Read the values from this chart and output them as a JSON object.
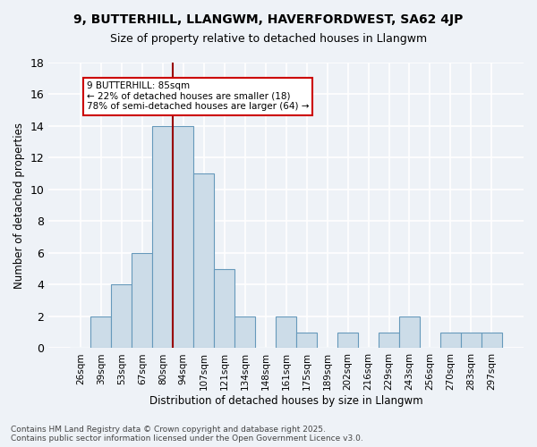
{
  "title1": "9, BUTTERHILL, LLANGWM, HAVERFORDWEST, SA62 4JP",
  "title2": "Size of property relative to detached houses in Llangwm",
  "xlabel": "Distribution of detached houses by size in Llangwm",
  "ylabel": "Number of detached properties",
  "categories": [
    "26sqm",
    "39sqm",
    "53sqm",
    "67sqm",
    "80sqm",
    "94sqm",
    "107sqm",
    "121sqm",
    "134sqm",
    "148sqm",
    "161sqm",
    "175sqm",
    "189sqm",
    "202sqm",
    "216sqm",
    "229sqm",
    "243sqm",
    "256sqm",
    "270sqm",
    "283sqm",
    "297sqm"
  ],
  "values": [
    0,
    2,
    4,
    6,
    14,
    14,
    11,
    5,
    2,
    0,
    2,
    1,
    0,
    1,
    0,
    1,
    2,
    0,
    1,
    1,
    1
  ],
  "bar_color": "#ccdce8",
  "bar_edge_color": "#6699bb",
  "vline_x_index": 4,
  "vline_color": "#990000",
  "annotation_text": "9 BUTTERHILL: 85sqm\n← 22% of detached houses are smaller (18)\n78% of semi-detached houses are larger (64) →",
  "annotation_box_color": "#ffffff",
  "annotation_box_edge": "#cc0000",
  "ylim": [
    0,
    18
  ],
  "yticks": [
    0,
    2,
    4,
    6,
    8,
    10,
    12,
    14,
    16,
    18
  ],
  "footer": "Contains HM Land Registry data © Crown copyright and database right 2025.\nContains public sector information licensed under the Open Government Licence v3.0.",
  "background_color": "#eef2f7",
  "grid_color": "#ffffff"
}
